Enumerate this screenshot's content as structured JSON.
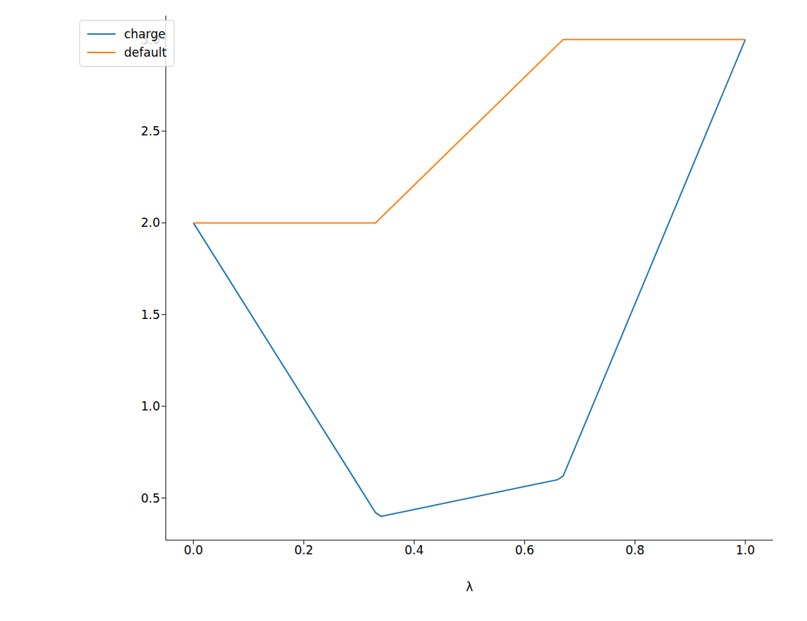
{
  "chart_data": {
    "type": "line",
    "x_label": "λ",
    "legend": "upper left",
    "grid": false,
    "xlim": [
      -0.05,
      1.05
    ],
    "xticks": [
      {
        "value": 0,
        "label": "0.0"
      },
      {
        "value": 0.2,
        "label": "0.2"
      },
      {
        "value": 0.4,
        "label": "0.4"
      },
      {
        "value": 0.6,
        "label": "0.6"
      },
      {
        "value": 0.8,
        "label": "0.8"
      },
      {
        "value": 1,
        "label": "1.0"
      }
    ],
    "ylim": [
      0.27,
      3.13
    ],
    "yticks": [
      0.5,
      {
        "value": 1,
        "label": "1.0"
      },
      1.5,
      {
        "value": 2,
        "label": "2.0"
      },
      2.5,
      {
        "value": 3,
        "label": "3.0"
      }
    ],
    "series": [
      {
        "name": "charge",
        "color": "#1f77b4",
        "x": [
          0,
          0.33,
          0.34,
          0.66,
          0.67,
          1
        ],
        "values": [
          2,
          0.42,
          0.4,
          0.6,
          0.62,
          3
        ]
      },
      {
        "name": "default",
        "color": "#ff7f0e",
        "x": [
          0,
          0.33,
          0.67,
          1
        ],
        "values": [
          2,
          2,
          3,
          3
        ]
      }
    ]
  }
}
